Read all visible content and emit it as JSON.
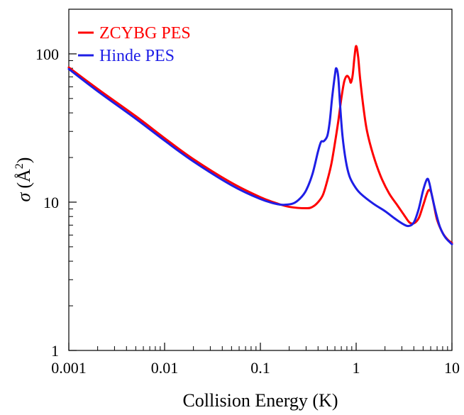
{
  "chart_data": {
    "type": "line",
    "xlabel": "Collision Energy (K)",
    "ylabel_symbol": "σ",
    "ylabel_unit": "(Å",
    "ylabel_sup": "2",
    "ylabel_close": ")",
    "xscale": "log",
    "yscale": "log",
    "xlim": [
      0.001,
      10
    ],
    "ylim": [
      1,
      200
    ],
    "grid": false,
    "legend_position": "top-left",
    "xticks": [
      {
        "value": 0.001,
        "label": "0.001"
      },
      {
        "value": 0.01,
        "label": "0.01"
      },
      {
        "value": 0.1,
        "label": "0.1"
      },
      {
        "value": 1,
        "label": "1"
      },
      {
        "value": 10,
        "label": "10"
      }
    ],
    "yticks": [
      {
        "value": 1,
        "label": "1"
      },
      {
        "value": 10,
        "label": "10"
      },
      {
        "value": 100,
        "label": "100"
      }
    ],
    "series": [
      {
        "name": "ZCYBG PES",
        "color": "#ff0000",
        "points": [
          [
            0.001,
            81
          ],
          [
            0.002,
            58
          ],
          [
            0.005,
            38
          ],
          [
            0.01,
            27
          ],
          [
            0.02,
            19.5
          ],
          [
            0.05,
            13.5
          ],
          [
            0.1,
            10.8
          ],
          [
            0.15,
            9.8
          ],
          [
            0.2,
            9.3
          ],
          [
            0.3,
            9.1
          ],
          [
            0.35,
            9.3
          ],
          [
            0.4,
            10
          ],
          [
            0.45,
            11.2
          ],
          [
            0.5,
            14
          ],
          [
            0.55,
            18
          ],
          [
            0.6,
            25
          ],
          [
            0.65,
            35
          ],
          [
            0.7,
            50
          ],
          [
            0.75,
            65
          ],
          [
            0.8,
            71
          ],
          [
            0.85,
            68
          ],
          [
            0.88,
            64
          ],
          [
            0.92,
            72
          ],
          [
            0.96,
            95
          ],
          [
            1.0,
            113
          ],
          [
            1.05,
            95
          ],
          [
            1.1,
            68
          ],
          [
            1.2,
            42
          ],
          [
            1.3,
            30
          ],
          [
            1.5,
            21
          ],
          [
            1.8,
            15
          ],
          [
            2.2,
            11.5
          ],
          [
            2.7,
            9.5
          ],
          [
            3.2,
            8.1
          ],
          [
            3.6,
            7.3
          ],
          [
            4.0,
            7.2
          ],
          [
            4.5,
            7.8
          ],
          [
            5.0,
            9.5
          ],
          [
            5.5,
            11.5
          ],
          [
            5.8,
            12.1
          ],
          [
            6.1,
            11.5
          ],
          [
            6.5,
            9.5
          ],
          [
            7.0,
            7.6
          ],
          [
            8.0,
            6.2
          ],
          [
            9.0,
            5.6
          ],
          [
            10,
            5.3
          ]
        ]
      },
      {
        "name": "Hinde PES",
        "color": "#1e1ee6",
        "points": [
          [
            0.001,
            79
          ],
          [
            0.002,
            56
          ],
          [
            0.005,
            36.5
          ],
          [
            0.01,
            26
          ],
          [
            0.02,
            18.8
          ],
          [
            0.05,
            13
          ],
          [
            0.1,
            10.5
          ],
          [
            0.15,
            9.7
          ],
          [
            0.18,
            9.6
          ],
          [
            0.22,
            9.8
          ],
          [
            0.26,
            10.6
          ],
          [
            0.3,
            12
          ],
          [
            0.35,
            15.5
          ],
          [
            0.4,
            22
          ],
          [
            0.43,
            25.5
          ],
          [
            0.46,
            25.8
          ],
          [
            0.5,
            28
          ],
          [
            0.53,
            35
          ],
          [
            0.56,
            50
          ],
          [
            0.6,
            72
          ],
          [
            0.62,
            80
          ],
          [
            0.65,
            70
          ],
          [
            0.68,
            45
          ],
          [
            0.72,
            28
          ],
          [
            0.78,
            19
          ],
          [
            0.85,
            15
          ],
          [
            0.95,
            13
          ],
          [
            1.1,
            11.5
          ],
          [
            1.5,
            9.8
          ],
          [
            2.0,
            8.7
          ],
          [
            2.5,
            7.8
          ],
          [
            3.0,
            7.2
          ],
          [
            3.5,
            6.9
          ],
          [
            4.0,
            7.3
          ],
          [
            4.5,
            9.0
          ],
          [
            5.0,
            12
          ],
          [
            5.5,
            14.3
          ],
          [
            5.8,
            13.5
          ],
          [
            6.2,
            11
          ],
          [
            6.8,
            8.5
          ],
          [
            7.5,
            6.8
          ],
          [
            8.5,
            5.8
          ],
          [
            10,
            5.2
          ]
        ]
      }
    ]
  }
}
